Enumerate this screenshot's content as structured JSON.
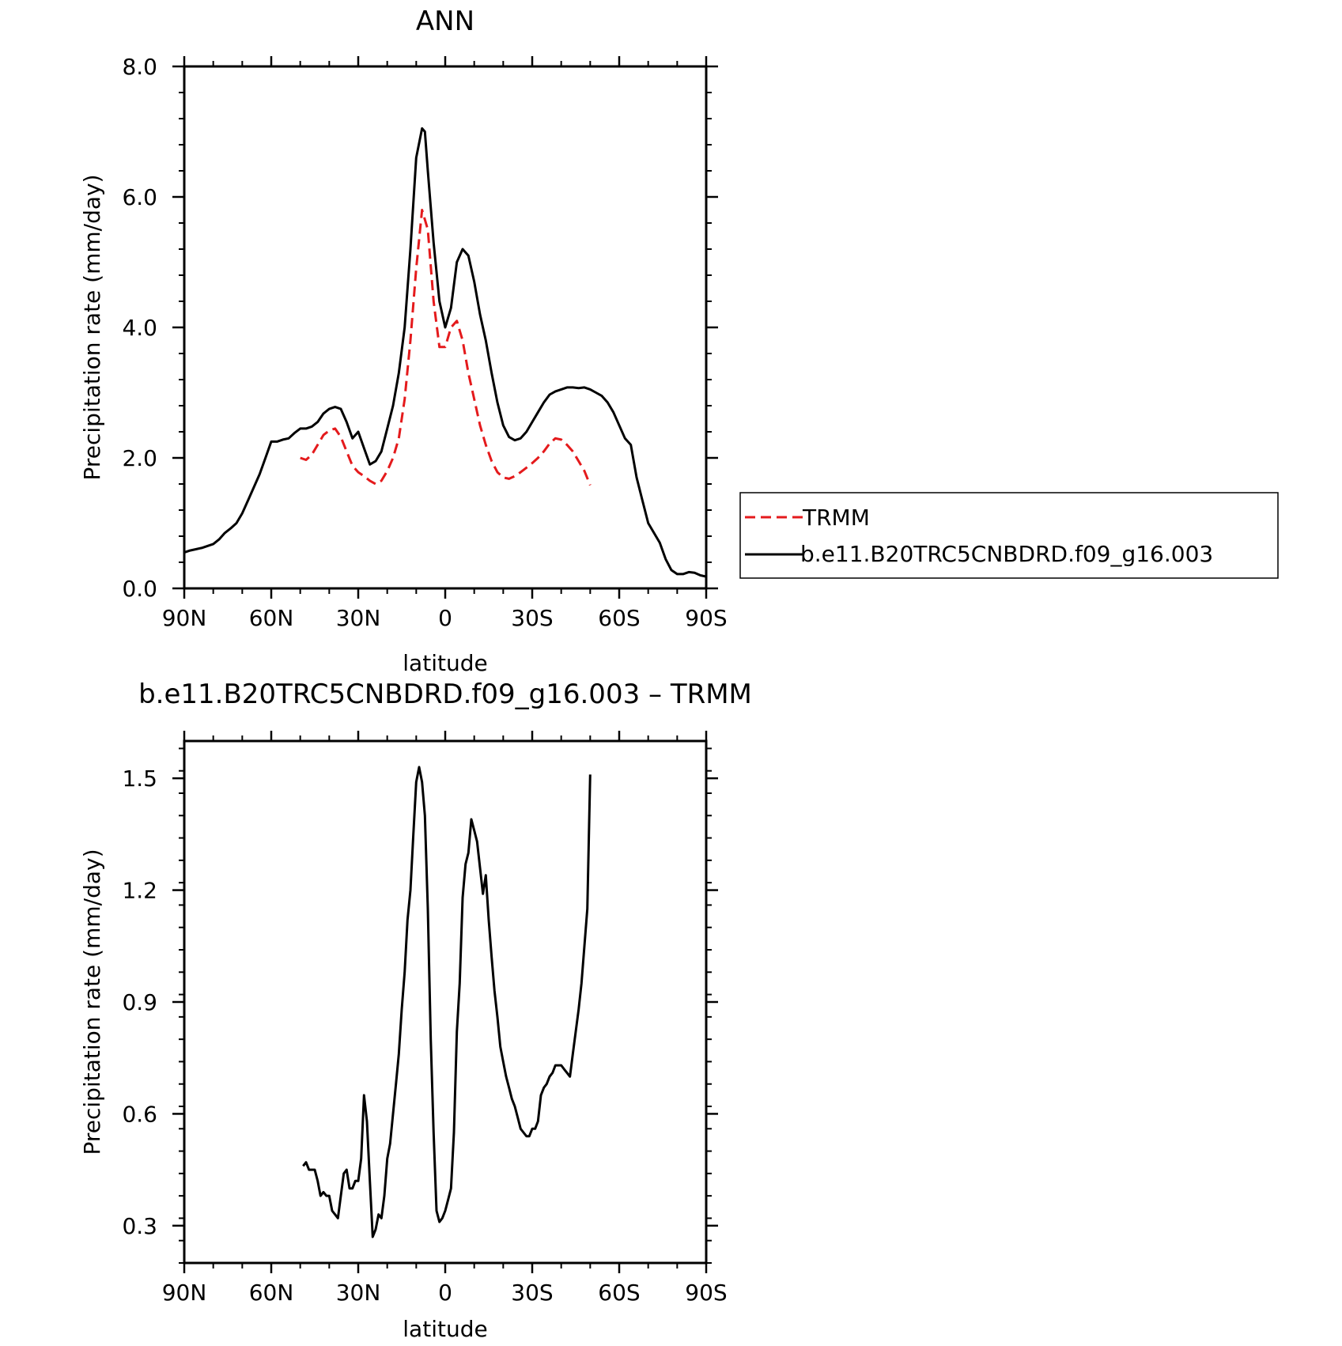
{
  "chart_data": [
    {
      "type": "line",
      "title": "ANN",
      "xlabel": "latitude",
      "ylabel": "Precipitation rate (mm/day)",
      "xlim": [
        90,
        -90
      ],
      "ylim": [
        0,
        8
      ],
      "x_tick_values": [
        90,
        60,
        30,
        0,
        -30,
        -60,
        -90
      ],
      "x_tick_labels": [
        "90N",
        "60N",
        "30N",
        "0",
        "30S",
        "60S",
        "90S"
      ],
      "y_tick_values": [
        0,
        2,
        4,
        6,
        8
      ],
      "y_tick_labels": [
        "0.0",
        "2.0",
        "4.0",
        "6.0",
        "8.0"
      ],
      "legend_position": "right",
      "series": [
        {
          "name": "TRMM",
          "color": "#e41a1c",
          "style": "dashed",
          "x": [
            50,
            48,
            46,
            44,
            42,
            40,
            38,
            36,
            34,
            32,
            30,
            28,
            26,
            24,
            22,
            20,
            18,
            16,
            14,
            12,
            10,
            8,
            6,
            4,
            2,
            0,
            -2,
            -4,
            -6,
            -8,
            -10,
            -12,
            -14,
            -16,
            -18,
            -20,
            -22,
            -24,
            -26,
            -28,
            -30,
            -32,
            -34,
            -36,
            -38,
            -40,
            -42,
            -44,
            -46,
            -48,
            -50
          ],
          "y": [
            2.0,
            1.97,
            2.05,
            2.2,
            2.35,
            2.42,
            2.45,
            2.32,
            2.1,
            1.88,
            1.78,
            1.72,
            1.65,
            1.6,
            1.65,
            1.8,
            2.0,
            2.3,
            2.9,
            3.8,
            4.9,
            5.8,
            5.5,
            4.4,
            3.7,
            3.7,
            4.0,
            4.1,
            3.8,
            3.3,
            2.9,
            2.5,
            2.2,
            1.95,
            1.78,
            1.7,
            1.68,
            1.72,
            1.78,
            1.85,
            1.92,
            2.0,
            2.1,
            2.22,
            2.3,
            2.28,
            2.2,
            2.1,
            1.95,
            1.8,
            1.58
          ]
        },
        {
          "name": "b.e11.B20TRC5CNBDRD.f09_g16.003",
          "color": "#000000",
          "style": "solid",
          "x": [
            90,
            88,
            86,
            84,
            82,
            80,
            78,
            76,
            74,
            72,
            70,
            68,
            66,
            64,
            62,
            60,
            58,
            56,
            54,
            52,
            50,
            48,
            46,
            44,
            42,
            40,
            38,
            36,
            34,
            32,
            30,
            28,
            26,
            24,
            22,
            20,
            18,
            16,
            14,
            12,
            10,
            8,
            7,
            6,
            4,
            2,
            0,
            -2,
            -4,
            -6,
            -8,
            -10,
            -12,
            -14,
            -16,
            -18,
            -20,
            -22,
            -24,
            -26,
            -28,
            -30,
            -32,
            -34,
            -36,
            -38,
            -40,
            -42,
            -44,
            -46,
            -48,
            -50,
            -52,
            -54,
            -56,
            -58,
            -60,
            -62,
            -64,
            -66,
            -68,
            -70,
            -72,
            -74,
            -76,
            -78,
            -80,
            -82,
            -84,
            -86,
            -88,
            -90
          ],
          "y": [
            0.55,
            0.58,
            0.6,
            0.62,
            0.65,
            0.68,
            0.75,
            0.85,
            0.92,
            1.0,
            1.15,
            1.35,
            1.55,
            1.75,
            2.0,
            2.25,
            2.25,
            2.28,
            2.3,
            2.38,
            2.45,
            2.45,
            2.48,
            2.55,
            2.68,
            2.75,
            2.78,
            2.75,
            2.55,
            2.3,
            2.4,
            2.15,
            1.9,
            1.95,
            2.1,
            2.45,
            2.8,
            3.3,
            4.0,
            5.2,
            6.6,
            7.05,
            7.0,
            6.4,
            5.3,
            4.4,
            4.0,
            4.3,
            5.0,
            5.2,
            5.1,
            4.7,
            4.2,
            3.8,
            3.3,
            2.85,
            2.5,
            2.32,
            2.27,
            2.3,
            2.4,
            2.55,
            2.7,
            2.85,
            2.97,
            3.02,
            3.05,
            3.08,
            3.08,
            3.07,
            3.08,
            3.05,
            3.0,
            2.95,
            2.85,
            2.7,
            2.5,
            2.3,
            2.2,
            1.7,
            1.35,
            1.0,
            0.85,
            0.7,
            0.45,
            0.28,
            0.22,
            0.22,
            0.25,
            0.24,
            0.2,
            0.18
          ]
        }
      ]
    },
    {
      "type": "line",
      "title": "b.e11.B20TRC5CNBDRD.f09_g16.003 – TRMM",
      "xlabel": "latitude",
      "ylabel": "Precipitation rate (mm/day)",
      "xlim": [
        90,
        -90
      ],
      "ylim": [
        0.2,
        1.6
      ],
      "x_tick_values": [
        90,
        60,
        30,
        0,
        -30,
        -60,
        -90
      ],
      "x_tick_labels": [
        "90N",
        "60N",
        "30N",
        "0",
        "30S",
        "60S",
        "90S"
      ],
      "y_tick_values": [
        0.3,
        0.6,
        0.9,
        1.2,
        1.5
      ],
      "y_tick_labels": [
        "0.3",
        "0.6",
        "0.9",
        "1.2",
        "1.5"
      ],
      "series": [
        {
          "color": "#000000",
          "style": "solid",
          "x": [
            49,
            48,
            47,
            46,
            45,
            44,
            43,
            42,
            41,
            40,
            39,
            38,
            37,
            36,
            35,
            34,
            33,
            32,
            31,
            30,
            29,
            28,
            27,
            26,
            25,
            24,
            23,
            22,
            21,
            20,
            19,
            18,
            17,
            16,
            15,
            14,
            13,
            12,
            11,
            10,
            9,
            8,
            7,
            6,
            5,
            4,
            3,
            2,
            1,
            0,
            -1,
            -2,
            -3,
            -4,
            -5,
            -6,
            -7,
            -8,
            -9,
            -10,
            -11,
            -12,
            -13,
            -14,
            -15,
            -16,
            -17,
            -18,
            -19,
            -20,
            -21,
            -22,
            -23,
            -24,
            -25,
            -26,
            -27,
            -28,
            -29,
            -30,
            -31,
            -32,
            -33,
            -34,
            -35,
            -36,
            -37,
            -38,
            -39,
            -40,
            -41,
            -42,
            -43,
            -44,
            -45,
            -46,
            -47,
            -48,
            -49,
            -50
          ],
          "y": [
            0.46,
            0.47,
            0.45,
            0.45,
            0.45,
            0.42,
            0.38,
            0.39,
            0.38,
            0.38,
            0.34,
            0.33,
            0.32,
            0.38,
            0.44,
            0.45,
            0.4,
            0.4,
            0.42,
            0.42,
            0.48,
            0.65,
            0.58,
            0.42,
            0.27,
            0.29,
            0.33,
            0.32,
            0.38,
            0.48,
            0.52,
            0.6,
            0.68,
            0.76,
            0.88,
            0.98,
            1.12,
            1.2,
            1.35,
            1.49,
            1.53,
            1.49,
            1.4,
            1.15,
            0.8,
            0.55,
            0.34,
            0.31,
            0.32,
            0.34,
            0.37,
            0.4,
            0.55,
            0.82,
            0.95,
            1.18,
            1.27,
            1.3,
            1.39,
            1.36,
            1.33,
            1.26,
            1.19,
            1.24,
            1.12,
            1.02,
            0.93,
            0.86,
            0.78,
            0.74,
            0.7,
            0.67,
            0.64,
            0.62,
            0.59,
            0.56,
            0.55,
            0.54,
            0.54,
            0.56,
            0.56,
            0.58,
            0.65,
            0.67,
            0.68,
            0.7,
            0.71,
            0.73,
            0.73,
            0.73,
            0.72,
            0.71,
            0.7,
            0.76,
            0.82,
            0.88,
            0.95,
            1.05,
            1.15,
            1.51
          ]
        }
      ]
    }
  ]
}
